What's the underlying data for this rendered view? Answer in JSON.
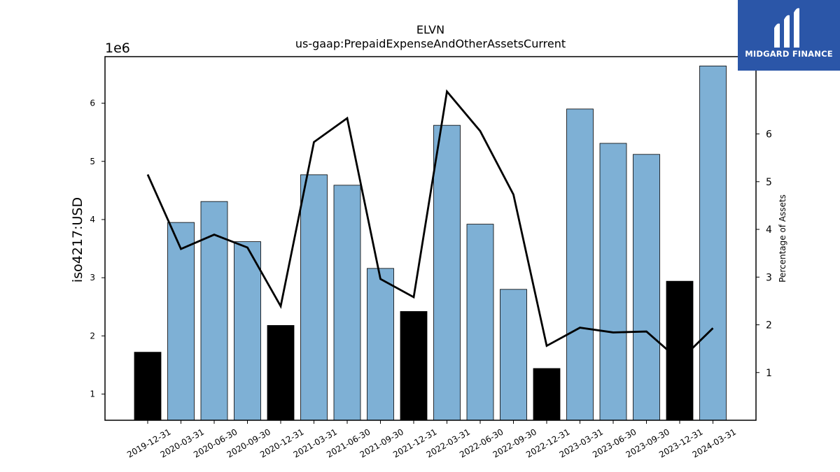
{
  "chart_data": {
    "type": "bar",
    "title": "ELVN",
    "subtitle": "us-gaap:PrepaidExpenseAndOtherAssetsCurrent",
    "ylabel": "iso4217:USD",
    "y_offset_label": "1e6",
    "y2label": "Percentage of Assets",
    "categories": [
      "2019-12-31",
      "2020-03-31",
      "2020-06-30",
      "2020-09-30",
      "2020-12-31",
      "2021-03-31",
      "2021-06-30",
      "2021-09-30",
      "2021-12-31",
      "2022-03-31",
      "2022-06-30",
      "2022-09-30",
      "2022-12-31",
      "2023-03-31",
      "2023-06-30",
      "2023-09-30",
      "2023-12-31",
      "2024-03-31"
    ],
    "values": [
      1720000,
      3950000,
      4310000,
      3620000,
      2180000,
      4770000,
      4590000,
      3160000,
      2420000,
      5620000,
      3920000,
      2800000,
      1440000,
      5900000,
      5310000,
      5120000,
      2940000,
      6640000
    ],
    "annual_flags": [
      true,
      false,
      false,
      false,
      true,
      false,
      false,
      false,
      true,
      false,
      false,
      false,
      true,
      false,
      false,
      false,
      true,
      false
    ],
    "bar_colors": {
      "quarterly": "#7eb0d5",
      "annual": "#000000"
    },
    "line": {
      "name": "Percentage of Assets",
      "color": "#000000",
      "values": [
        5.15,
        3.59,
        3.89,
        3.62,
        2.39,
        5.83,
        6.33,
        2.96,
        2.58,
        6.89,
        6.06,
        4.73,
        1.56,
        1.94,
        1.84,
        1.86,
        1.25,
        1.93
      ]
    },
    "ylim": [
      550000,
      6800000
    ],
    "y2lim": [
      0,
      7.62
    ],
    "yticks": [
      1,
      2,
      3,
      4,
      5,
      6
    ],
    "y2ticks": [
      1,
      2,
      3,
      4,
      5,
      6
    ],
    "grid": false
  },
  "logo": {
    "name": "MIDGARD FINANCE"
  }
}
